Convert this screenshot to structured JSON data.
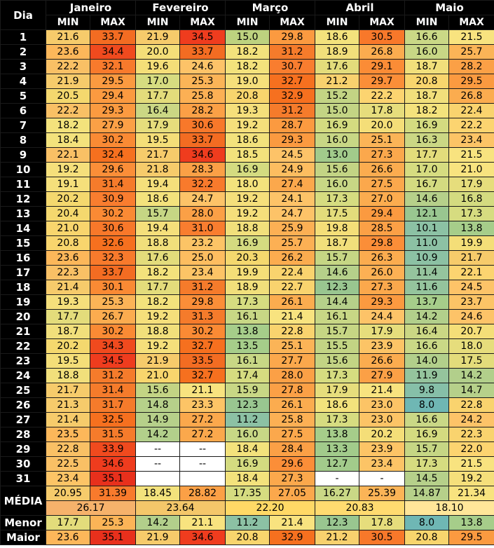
{
  "header": {
    "day_label": "Dia",
    "months": [
      "Janeiro",
      "Fevereiro",
      "Março",
      "Abril",
      "Maio"
    ],
    "min_label": "MIN",
    "max_label": "MAX"
  },
  "rows": [
    {
      "day": "1",
      "v": [
        "21.6",
        "33.7",
        "21.9",
        "34.5",
        "15.0",
        "29.8",
        "18.6",
        "30.5",
        "16.6",
        "21.5"
      ],
      "c": [
        "#f6cb6b",
        "#f36c22",
        "#f6cb6b",
        "#ef3c1e",
        "#bdd27f",
        "#fb9a40",
        "#f3e27c",
        "#f8782a",
        "#cad886",
        "#f8e37f"
      ]
    },
    {
      "day": "2",
      "v": [
        "23.6",
        "34.4",
        "20.0",
        "33.7",
        "18.2",
        "31.2",
        "18.9",
        "26.8",
        "16.0",
        "25.7"
      ],
      "c": [
        "#fcb75a",
        "#f04a1e",
        "#f4de78",
        "#f36c22",
        "#f3e27c",
        "#f57b2b",
        "#f1df7b",
        "#fbac4f",
        "#c8d785",
        "#fbb457"
      ]
    },
    {
      "day": "3",
      "v": [
        "22.2",
        "32.1",
        "19.6",
        "24.6",
        "18.2",
        "30.7",
        "17.6",
        "29.1",
        "18.7",
        "28.2"
      ],
      "c": [
        "#f9c065",
        "#f87a2c",
        "#f4de78",
        "#fdc368",
        "#f3e27c",
        "#f97d2f",
        "#e3dc7b",
        "#fb8c36",
        "#f1df7b",
        "#fba046"
      ]
    },
    {
      "day": "4",
      "v": [
        "21.9",
        "29.5",
        "17.0",
        "25.3",
        "19.0",
        "32.7",
        "21.2",
        "29.7",
        "20.8",
        "29.5"
      ],
      "c": [
        "#f6cb6b",
        "#fb9a40",
        "#d6dc80",
        "#fbb457",
        "#f5df7b",
        "#f6701f",
        "#f8d16e",
        "#fb8e38",
        "#f8d56d",
        "#fb9a40"
      ]
    },
    {
      "day": "5",
      "v": [
        "20.5",
        "29.4",
        "17.7",
        "25.8",
        "20.8",
        "32.9",
        "15.2",
        "22.2",
        "18.7",
        "26.8"
      ],
      "c": [
        "#f4d86e",
        "#fb9a40",
        "#e3dc7b",
        "#fcb054",
        "#f8d56d",
        "#f6701f",
        "#c3d484",
        "#fcd470",
        "#f1df7b",
        "#fbac4f"
      ]
    },
    {
      "day": "6",
      "v": [
        "22.2",
        "29.3",
        "16.4",
        "28.2",
        "19.3",
        "31.2",
        "15.0",
        "17.8",
        "18.2",
        "22.4"
      ],
      "c": [
        "#f9c065",
        "#fb9a40",
        "#cbd784",
        "#fba046",
        "#f5df7b",
        "#f57b2b",
        "#c3d484",
        "#e6dd7c",
        "#f3e27c",
        "#f9d36e"
      ]
    },
    {
      "day": "7",
      "v": [
        "18.2",
        "27.9",
        "17.9",
        "30.6",
        "19.2",
        "28.7",
        "16.9",
        "20.0",
        "16.9",
        "22.2"
      ],
      "c": [
        "#f3e27c",
        "#fba046",
        "#e6dd7c",
        "#f8782a",
        "#f5df7b",
        "#fb9a40",
        "#d4db80",
        "#f4de78",
        "#d4db80",
        "#fcd470"
      ]
    },
    {
      "day": "8",
      "v": [
        "18.4",
        "30.2",
        "19.5",
        "33.7",
        "18.6",
        "29.3",
        "16.0",
        "25.1",
        "16.3",
        "23.4"
      ],
      "c": [
        "#f3e27c",
        "#fa8a34",
        "#f4de78",
        "#f36c22",
        "#f3e27c",
        "#fb9a40",
        "#c8d785",
        "#fbb457",
        "#cbd784",
        "#fcc466"
      ]
    },
    {
      "day": "9",
      "v": [
        "22.1",
        "32.4",
        "21.7",
        "34.6",
        "18.5",
        "24.5",
        "13.0",
        "27.3",
        "17.7",
        "21.5"
      ],
      "c": [
        "#f9c065",
        "#f6701f",
        "#f6cb6b",
        "#ef3c1e",
        "#f3e27c",
        "#fdc368",
        "#a2cb8b",
        "#fba84c",
        "#e3dc7b",
        "#f8e37f"
      ]
    },
    {
      "day": "10",
      "v": [
        "19.2",
        "29.6",
        "21.8",
        "28.3",
        "16.9",
        "24.9",
        "15.6",
        "26.6",
        "17.0",
        "21.0"
      ],
      "c": [
        "#f5df7b",
        "#fb8e38",
        "#f6cb6b",
        "#fba046",
        "#d4db80",
        "#fdbd60",
        "#c3d484",
        "#fbac4f",
        "#d6dc80",
        "#f8e37f"
      ]
    },
    {
      "day": "11",
      "v": [
        "19.1",
        "31.4",
        "19.4",
        "32.2",
        "18.0",
        "27.4",
        "16.0",
        "27.5",
        "16.7",
        "17.9"
      ],
      "c": [
        "#f5df7b",
        "#f57b2b",
        "#f5df7b",
        "#f87a2c",
        "#f3e27c",
        "#fba84c",
        "#c8d785",
        "#fba84c",
        "#d4db80",
        "#e6dd7c"
      ]
    },
    {
      "day": "12",
      "v": [
        "20.2",
        "30.9",
        "18.6",
        "24.7",
        "19.2",
        "24.1",
        "17.3",
        "27.0",
        "14.6",
        "16.8"
      ],
      "c": [
        "#f4d86e",
        "#f97d2f",
        "#f3e27c",
        "#fdc368",
        "#f5df7b",
        "#fdc368",
        "#d6dc80",
        "#fbac4f",
        "#b6d08a",
        "#d4db80"
      ]
    },
    {
      "day": "13",
      "v": [
        "20.4",
        "30.2",
        "15.7",
        "28.0",
        "19.2",
        "24.7",
        "17.5",
        "29.4",
        "12.1",
        "17.3"
      ],
      "c": [
        "#f4d86e",
        "#fa8a34",
        "#c6d684",
        "#fba046",
        "#f5df7b",
        "#fdc368",
        "#e3dc7b",
        "#fb9a40",
        "#99c690",
        "#d6dc80"
      ]
    },
    {
      "day": "14",
      "v": [
        "21.0",
        "30.6",
        "19.4",
        "31.0",
        "18.8",
        "25.9",
        "19.8",
        "28.5",
        "10.1",
        "13.8"
      ],
      "c": [
        "#f8d56d",
        "#f8782a",
        "#f5df7b",
        "#f97d2f",
        "#f1df7b",
        "#fcb054",
        "#f4de78",
        "#fba046",
        "#8cc1a4",
        "#a6cd8a"
      ]
    },
    {
      "day": "15",
      "v": [
        "20.8",
        "32.6",
        "18.8",
        "23.2",
        "16.9",
        "25.7",
        "18.7",
        "29.8",
        "11.0",
        "19.9"
      ],
      "c": [
        "#f8d56d",
        "#f6701f",
        "#f1df7b",
        "#fcc466",
        "#d4db80",
        "#fcb054",
        "#f1df7b",
        "#fb8e38",
        "#8cc1a4",
        "#f4de78"
      ]
    },
    {
      "day": "16",
      "v": [
        "23.6",
        "32.3",
        "17.6",
        "25.0",
        "20.3",
        "26.2",
        "15.7",
        "26.3",
        "10.9",
        "21.7"
      ],
      "c": [
        "#fcb75a",
        "#f87a2c",
        "#e3dc7b",
        "#fdbd60",
        "#f4d86e",
        "#fbac4f",
        "#c6d684",
        "#fbac4f",
        "#8cc1a4",
        "#f6cb6b"
      ]
    },
    {
      "day": "17",
      "v": [
        "22.3",
        "33.7",
        "18.2",
        "23.4",
        "19.9",
        "22.4",
        "14.6",
        "26.0",
        "11.4",
        "22.1"
      ],
      "c": [
        "#f9c065",
        "#f36c22",
        "#f3e27c",
        "#fcc466",
        "#f4de78",
        "#f9d36e",
        "#b6d08a",
        "#fcb054",
        "#95c49d",
        "#fcd470"
      ]
    },
    {
      "day": "18",
      "v": [
        "21.4",
        "30.1",
        "17.7",
        "31.2",
        "18.9",
        "22.7",
        "12.3",
        "27.3",
        "11.6",
        "24.5"
      ],
      "c": [
        "#f6cb6b",
        "#fa8a34",
        "#e3dc7b",
        "#f57b2b",
        "#f1df7b",
        "#f9d36e",
        "#99c690",
        "#fba84c",
        "#95c49d",
        "#fdc368"
      ]
    },
    {
      "day": "19",
      "v": [
        "19.3",
        "25.3",
        "18.2",
        "29.8",
        "17.3",
        "26.1",
        "14.4",
        "29.3",
        "13.7",
        "23.7"
      ],
      "c": [
        "#f5df7b",
        "#fbb457",
        "#f3e27c",
        "#fb8e38",
        "#d6dc80",
        "#fbac4f",
        "#b6d08a",
        "#fb9a40",
        "#a6cd8a",
        "#fcc466"
      ]
    },
    {
      "day": "20",
      "v": [
        "17.7",
        "26.7",
        "19.2",
        "31.3",
        "16.1",
        "21.4",
        "16.1",
        "24.4",
        "14.2",
        "24.6"
      ],
      "c": [
        "#e3dc7b",
        "#fbac4f",
        "#f5df7b",
        "#f57b2b",
        "#c8d785",
        "#f8e37f",
        "#c8d785",
        "#fdc368",
        "#b2cf8b",
        "#fdc368"
      ]
    },
    {
      "day": "21",
      "v": [
        "18.7",
        "30.2",
        "18.8",
        "30.2",
        "13.8",
        "22.8",
        "15.7",
        "17.9",
        "16.4",
        "20.7"
      ],
      "c": [
        "#f1df7b",
        "#fa8a34",
        "#f1df7b",
        "#fa8a34",
        "#a6cd8a",
        "#f9d36e",
        "#c6d684",
        "#e6dd7c",
        "#cbd784",
        "#f4de78"
      ]
    },
    {
      "day": "22",
      "v": [
        "20.2",
        "34.3",
        "19.2",
        "32.7",
        "13.5",
        "25.1",
        "15.5",
        "23.9",
        "16.6",
        "18.0"
      ],
      "c": [
        "#f4d86e",
        "#f04a1e",
        "#f5df7b",
        "#f6701f",
        "#a6cd8a",
        "#fbb457",
        "#c3d484",
        "#fcc466",
        "#cad886",
        "#e6dd7c"
      ]
    },
    {
      "day": "23",
      "v": [
        "19.5",
        "34.5",
        "21.9",
        "33.5",
        "16.1",
        "27.7",
        "15.6",
        "26.6",
        "14.0",
        "17.5"
      ],
      "c": [
        "#f4de78",
        "#ef3c1e",
        "#f6cb6b",
        "#f36c22",
        "#c8d785",
        "#fba84c",
        "#c3d484",
        "#fbac4f",
        "#b2cf8b",
        "#e3dc7b"
      ]
    },
    {
      "day": "24",
      "v": [
        "18.8",
        "31.2",
        "21.0",
        "32.7",
        "17.4",
        "28.0",
        "17.3",
        "27.9",
        "11.9",
        "14.2"
      ],
      "c": [
        "#f1df7b",
        "#f57b2b",
        "#f8d56d",
        "#f6701f",
        "#d6dc80",
        "#fba046",
        "#d6dc80",
        "#fba046",
        "#95c49d",
        "#b2cf8b"
      ]
    },
    {
      "day": "25",
      "v": [
        "21.7",
        "31.4",
        "15.6",
        "21.1",
        "15.9",
        "27.8",
        "17.9",
        "21.4",
        "9.8",
        "14.7"
      ],
      "c": [
        "#f6cb6b",
        "#f57b2b",
        "#c3d484",
        "#f8e37f",
        "#c8d785",
        "#fba046",
        "#e6dd7c",
        "#f8e37f",
        "#86bfa8",
        "#b6d08a"
      ]
    },
    {
      "day": "26",
      "v": [
        "21.3",
        "31.7",
        "14.8",
        "23.3",
        "12.3",
        "26.1",
        "18.6",
        "23.0",
        "8.0",
        "22.8"
      ],
      "c": [
        "#f6cb6b",
        "#f57b2b",
        "#b6d08a",
        "#fcc466",
        "#99c690",
        "#fbac4f",
        "#f3e27c",
        "#fcc466",
        "#6fb7b4",
        "#f9d36e"
      ]
    },
    {
      "day": "27",
      "v": [
        "21.4",
        "32.5",
        "14.9",
        "27.2",
        "11.2",
        "25.8",
        "17.3",
        "23.0",
        "16.6",
        "24.2"
      ],
      "c": [
        "#f6cb6b",
        "#f6701f",
        "#b6d08a",
        "#fba84c",
        "#8cc1a4",
        "#fcb054",
        "#d6dc80",
        "#fcc466",
        "#cad886",
        "#fdc368"
      ]
    },
    {
      "day": "28",
      "v": [
        "23.5",
        "31.5",
        "14.2",
        "27.2",
        "16.0",
        "27.5",
        "13.8",
        "20.2",
        "16.9",
        "22.3"
      ],
      "c": [
        "#fcb75a",
        "#f57b2b",
        "#b2cf8b",
        "#fba84c",
        "#c8d785",
        "#fba84c",
        "#a6cd8a",
        "#f4de78",
        "#d4db80",
        "#f9d36e"
      ]
    },
    {
      "day": "29",
      "v": [
        "22.8",
        "33.9",
        "--",
        "--",
        "18.4",
        "28.4",
        "13.3",
        "23.9",
        "15.7",
        "22.0"
      ],
      "c": [
        "#f9c065",
        "#f04a1e",
        "",
        "",
        "#f3e27c",
        "#fba046",
        "#a2cb8b",
        "#fcc466",
        "#c6d684",
        "#fcd470"
      ]
    },
    {
      "day": "30",
      "v": [
        "22.5",
        "34.6",
        "--",
        "--",
        "16.9",
        "29.6",
        "12.7",
        "23.4",
        "17.3",
        "21.5"
      ],
      "c": [
        "#f9c065",
        "#ef3c1e",
        "",
        "",
        "#d4db80",
        "#fb8e38",
        "#a2cb8b",
        "#fcc466",
        "#d6dc80",
        "#f8e37f"
      ]
    },
    {
      "day": "31",
      "v": [
        "23.4",
        "35.1",
        "",
        "",
        "18.4",
        "27.3",
        "-",
        "-",
        "14.5",
        "19.2"
      ],
      "c": [
        "#fcc466",
        "#e8301c",
        "",
        "",
        "#f3e27c",
        "#fba84c",
        "",
        "",
        "#b6d08a",
        "#f5df7b"
      ]
    }
  ],
  "summary": {
    "media_label": "MÉDIA",
    "media_values": [
      "20.95",
      "31.39",
      "18.45",
      "28.82",
      "17.35",
      "27.05",
      "16.27",
      "25.39",
      "14.87",
      "21.34"
    ],
    "media_colors": [
      "#f6cb6b",
      "#f87a2c",
      "#f3e27c",
      "#fba046",
      "#d6dc80",
      "#fba84c",
      "#cad886",
      "#fbb457",
      "#b6d08a",
      "#f8e37f"
    ],
    "media_combined": [
      "26.17",
      "23.64",
      "22.20",
      "20.83",
      "18.10"
    ],
    "menor_label": "Menor",
    "menor_values": [
      "17.7",
      "25.3",
      "14.2",
      "21.1",
      "11.2",
      "21.4",
      "12.3",
      "17.8",
      "8.0",
      "13.8"
    ],
    "menor_colors": [
      "#e3dc7b",
      "#fbb457",
      "#b2cf8b",
      "#f8e37f",
      "#8cc1a4",
      "#f8e37f",
      "#99c690",
      "#e6dd7c",
      "#6fb7b4",
      "#a6cd8a"
    ],
    "maior_label": "Maior",
    "maior_values": [
      "23.6",
      "35.1",
      "21.9",
      "34.6",
      "20.8",
      "32.9",
      "21.2",
      "30.5",
      "20.8",
      "29.5"
    ],
    "maior_colors": [
      "#fcb75a",
      "#e8301c",
      "#f6cb6b",
      "#ef3c1e",
      "#f8d56d",
      "#f6701f",
      "#f8d16e",
      "#f8782a",
      "#f8d56d",
      "#fb9a40"
    ]
  }
}
